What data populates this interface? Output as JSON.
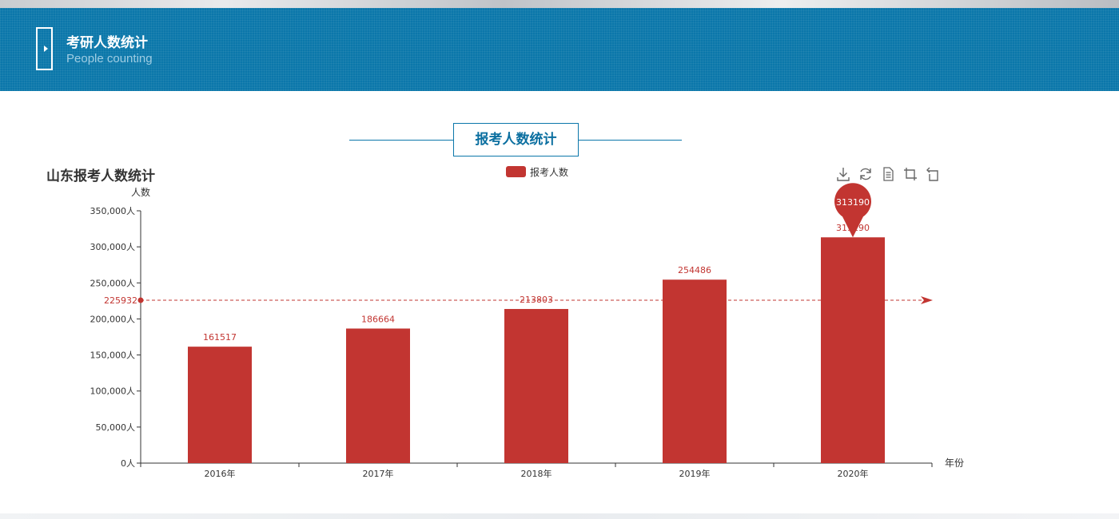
{
  "header": {
    "title": "考研人数统计",
    "subtitle": "People counting"
  },
  "section": {
    "title": "报考人数统计"
  },
  "toolbox": {
    "icons": [
      "download-icon",
      "refresh-icon",
      "data-view-icon",
      "zoom-icon",
      "zoom-reset-icon"
    ]
  },
  "colors": {
    "header_bg": "#0b77aa",
    "bar": "#c23531",
    "axis": "#333333"
  },
  "chart_data": {
    "type": "bar",
    "title": "山东报考人数统计",
    "legend": [
      "报考人数"
    ],
    "legend_position": "top-center",
    "xlabel": "年份",
    "ylabel": "人数",
    "categories": [
      "2016年",
      "2017年",
      "2018年",
      "2019年",
      "2020年"
    ],
    "series": [
      {
        "name": "报考人数",
        "values": [
          161517,
          186664,
          213803,
          254486,
          313190
        ],
        "data_labels": [
          "161517",
          "186664",
          "213803",
          "254486",
          "313190"
        ],
        "color": "#c23531"
      }
    ],
    "ylim": [
      0,
      350000
    ],
    "y_ticks": [
      0,
      50000,
      100000,
      150000,
      200000,
      250000,
      300000,
      350000
    ],
    "y_tick_labels": [
      "0人",
      "50,000人",
      "100,000人",
      "150,000人",
      "200,000人",
      "250,000人",
      "300,000人",
      "350,000人"
    ],
    "mark_point": {
      "category": "2020年",
      "value": 313190,
      "label": "313190"
    },
    "mark_line": {
      "type": "average",
      "value": 225932,
      "label": "225932"
    },
    "grid": false
  }
}
